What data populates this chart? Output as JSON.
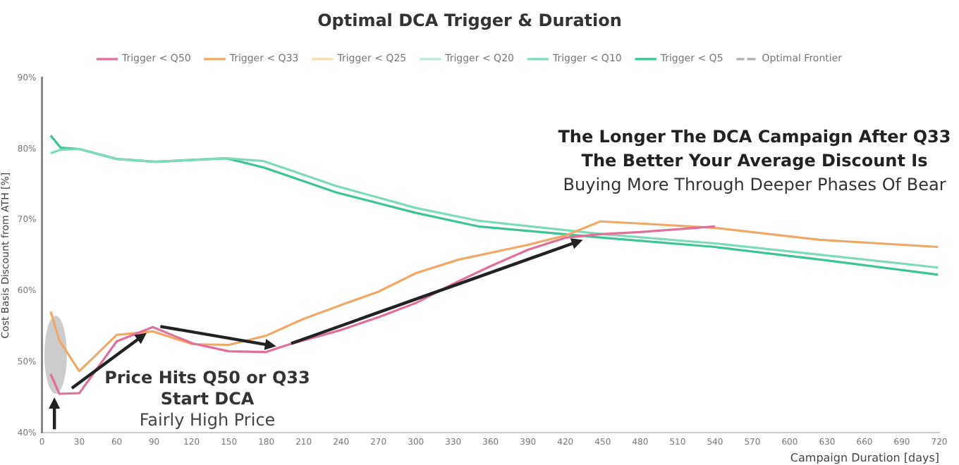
{
  "chart_data": {
    "type": "line",
    "title": "Optimal DCA Trigger & Duration",
    "xlabel": "Campaign Duration [days]",
    "ylabel": "Cost Basis Discount from ATH [%]",
    "xlim": [
      0,
      720
    ],
    "xticks": [
      0,
      30,
      60,
      90,
      120,
      150,
      180,
      210,
      240,
      270,
      300,
      330,
      360,
      390,
      420,
      450,
      480,
      510,
      540,
      570,
      600,
      630,
      660,
      690,
      720
    ],
    "ylim": [
      40,
      90
    ],
    "yticks": [
      {
        "value": 40,
        "label": "40%"
      },
      {
        "value": 50,
        "label": "50%"
      },
      {
        "value": 60,
        "label": "60%"
      },
      {
        "value": 70,
        "label": "70%"
      },
      {
        "value": 80,
        "label": "80%"
      },
      {
        "value": 90,
        "label": "90%"
      }
    ],
    "grid": false,
    "legend": "top",
    "marker": "none",
    "series": [
      {
        "name": "Trigger < Q50",
        "color": "#e0709a",
        "x": [
          7,
          14,
          30,
          60,
          89,
          121,
          150,
          180,
          197,
          240,
          270,
          300,
          330,
          360,
          390,
          420,
          448,
          480,
          510,
          540
        ],
        "values": [
          48.3,
          45.5,
          45.6,
          52.9,
          54.9,
          52.6,
          51.5,
          51.4,
          52.4,
          54.5,
          56.3,
          58.3,
          61,
          63.5,
          65.8,
          67.5,
          68,
          68.3,
          68.7,
          69.1
        ]
      },
      {
        "name": "Trigger < Q33",
        "color": "#f0a868",
        "x": [
          7,
          14,
          30,
          60,
          89,
          121,
          150,
          180,
          209,
          243,
          270,
          300,
          334,
          390,
          420,
          448,
          480,
          540,
          624,
          719
        ],
        "values": [
          57.1,
          53,
          48.7,
          53.8,
          54.3,
          52.5,
          52.4,
          53.7,
          56,
          58.2,
          59.9,
          62.5,
          64.4,
          66.5,
          67.8,
          69.8,
          69.5,
          68.9,
          67.2,
          66.2
        ]
      },
      {
        "name": "Trigger < Q25",
        "color": "#f3dcb0"
      },
      {
        "name": "Trigger < Q20",
        "color": "#bfe8d6"
      },
      {
        "name": "Trigger < Q10",
        "color": "#7ddcb6",
        "x": [
          7,
          15,
          30,
          60,
          91,
          148,
          178,
          236,
          300,
          350,
          450,
          540,
          630,
          719
        ],
        "values": [
          79.4,
          79.9,
          80,
          78.6,
          78.2,
          78.7,
          78.3,
          74.8,
          71.7,
          69.9,
          68,
          66.7,
          65,
          63.3
        ]
      },
      {
        "name": "Trigger < Q5",
        "color": "#3cc494",
        "x": [
          7,
          15,
          30,
          60,
          91,
          148,
          178,
          236,
          300,
          350,
          450,
          540,
          630,
          719
        ],
        "values": [
          81.9,
          80.2,
          80,
          78.6,
          78.2,
          78.7,
          77.4,
          73.9,
          71,
          69.1,
          67.5,
          66.2,
          64.3,
          62.3
        ]
      },
      {
        "name": "Optimal Frontier",
        "color": "#b0b0b0",
        "line_style": "dashed"
      }
    ],
    "annotations": [
      "The Longer The DCA Campaign After Q33",
      "The Better Your Average Discount Is",
      "Buying More Through Deeper Phases Of Bear",
      {
        "text": "Price Hits Q50 or Q33",
        "x": 89,
        "y": 54.9
      },
      "Start DCA",
      "Fairly High Price"
    ]
  }
}
